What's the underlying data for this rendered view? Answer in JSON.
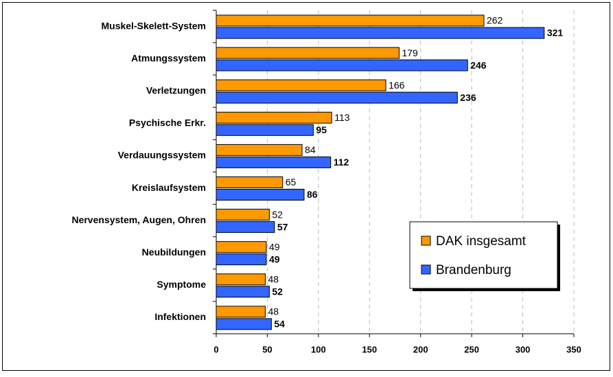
{
  "chart_data": {
    "type": "bar",
    "orientation": "horizontal",
    "categories": [
      "Muskel-Skelett-System",
      "Atmungssystem",
      "Verletzungen",
      "Psychische Erkr.",
      "Verdauungssystem",
      "Kreislaufsystem",
      "Nervensystem, Augen, Ohren",
      "Neubildungen",
      "Symptome",
      "Infektionen"
    ],
    "series": [
      {
        "name": "DAK insgesamt",
        "color": "#ff9900",
        "values": [
          262,
          179,
          166,
          113,
          84,
          65,
          52,
          49,
          48,
          48
        ]
      },
      {
        "name": "Brandenburg",
        "color": "#3366ff",
        "values": [
          321,
          246,
          236,
          95,
          112,
          86,
          57,
          49,
          52,
          54
        ]
      }
    ],
    "xlim": [
      0,
      350
    ],
    "xticks": [
      0,
      50,
      100,
      150,
      200,
      250,
      300,
      350
    ],
    "grid": true,
    "legend": "right"
  }
}
